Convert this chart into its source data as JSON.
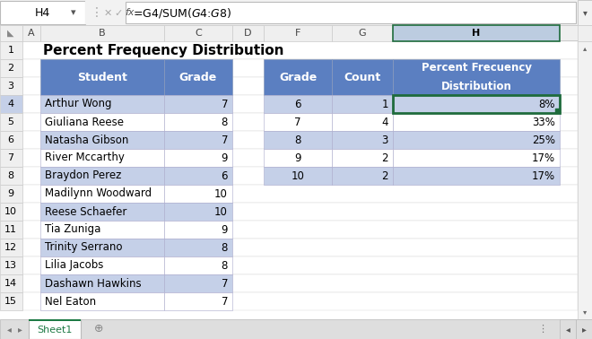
{
  "title": "Percent Frequency Distribution",
  "formula_bar_cell": "H4",
  "formula_bar_formula": "=G4/SUM($G$4:$G$8)",
  "left_table_data": [
    [
      "Arthur Wong",
      "7"
    ],
    [
      "Giuliana Reese",
      "8"
    ],
    [
      "Natasha Gibson",
      "7"
    ],
    [
      "River Mccarthy",
      "9"
    ],
    [
      "Braydon Perez",
      "6"
    ],
    [
      "Madilynn Woodward",
      "10"
    ],
    [
      "Reese Schaefer",
      "10"
    ],
    [
      "Tia Zuniga",
      "9"
    ],
    [
      "Trinity Serrano",
      "8"
    ],
    [
      "Lilia Jacobs",
      "8"
    ],
    [
      "Dashawn Hawkins",
      "7"
    ],
    [
      "Nel Eaton",
      "7"
    ]
  ],
  "right_table_data": [
    [
      "6",
      "1",
      "8%"
    ],
    [
      "7",
      "4",
      "33%"
    ],
    [
      "8",
      "3",
      "25%"
    ],
    [
      "9",
      "2",
      "17%"
    ],
    [
      "10",
      "2",
      "17%"
    ]
  ],
  "header_bg": "#5B7FC1",
  "header_text": "#FFFFFF",
  "row_bg_even": "#C5D0E8",
  "row_bg_odd": "#FFFFFF",
  "selected_cell_border": "#1E6B3C",
  "col_header_sel_bg": "#BCCCE0",
  "tab_active_color": "#1E7A45",
  "grid_line": "#D0D0D0",
  "col_header_bg": "#EFEFEF",
  "row_header_bg": "#EFEFEF",
  "scrollbar_bg": "#E8E8E8",
  "tab_bar_bg": "#DEDEDE"
}
